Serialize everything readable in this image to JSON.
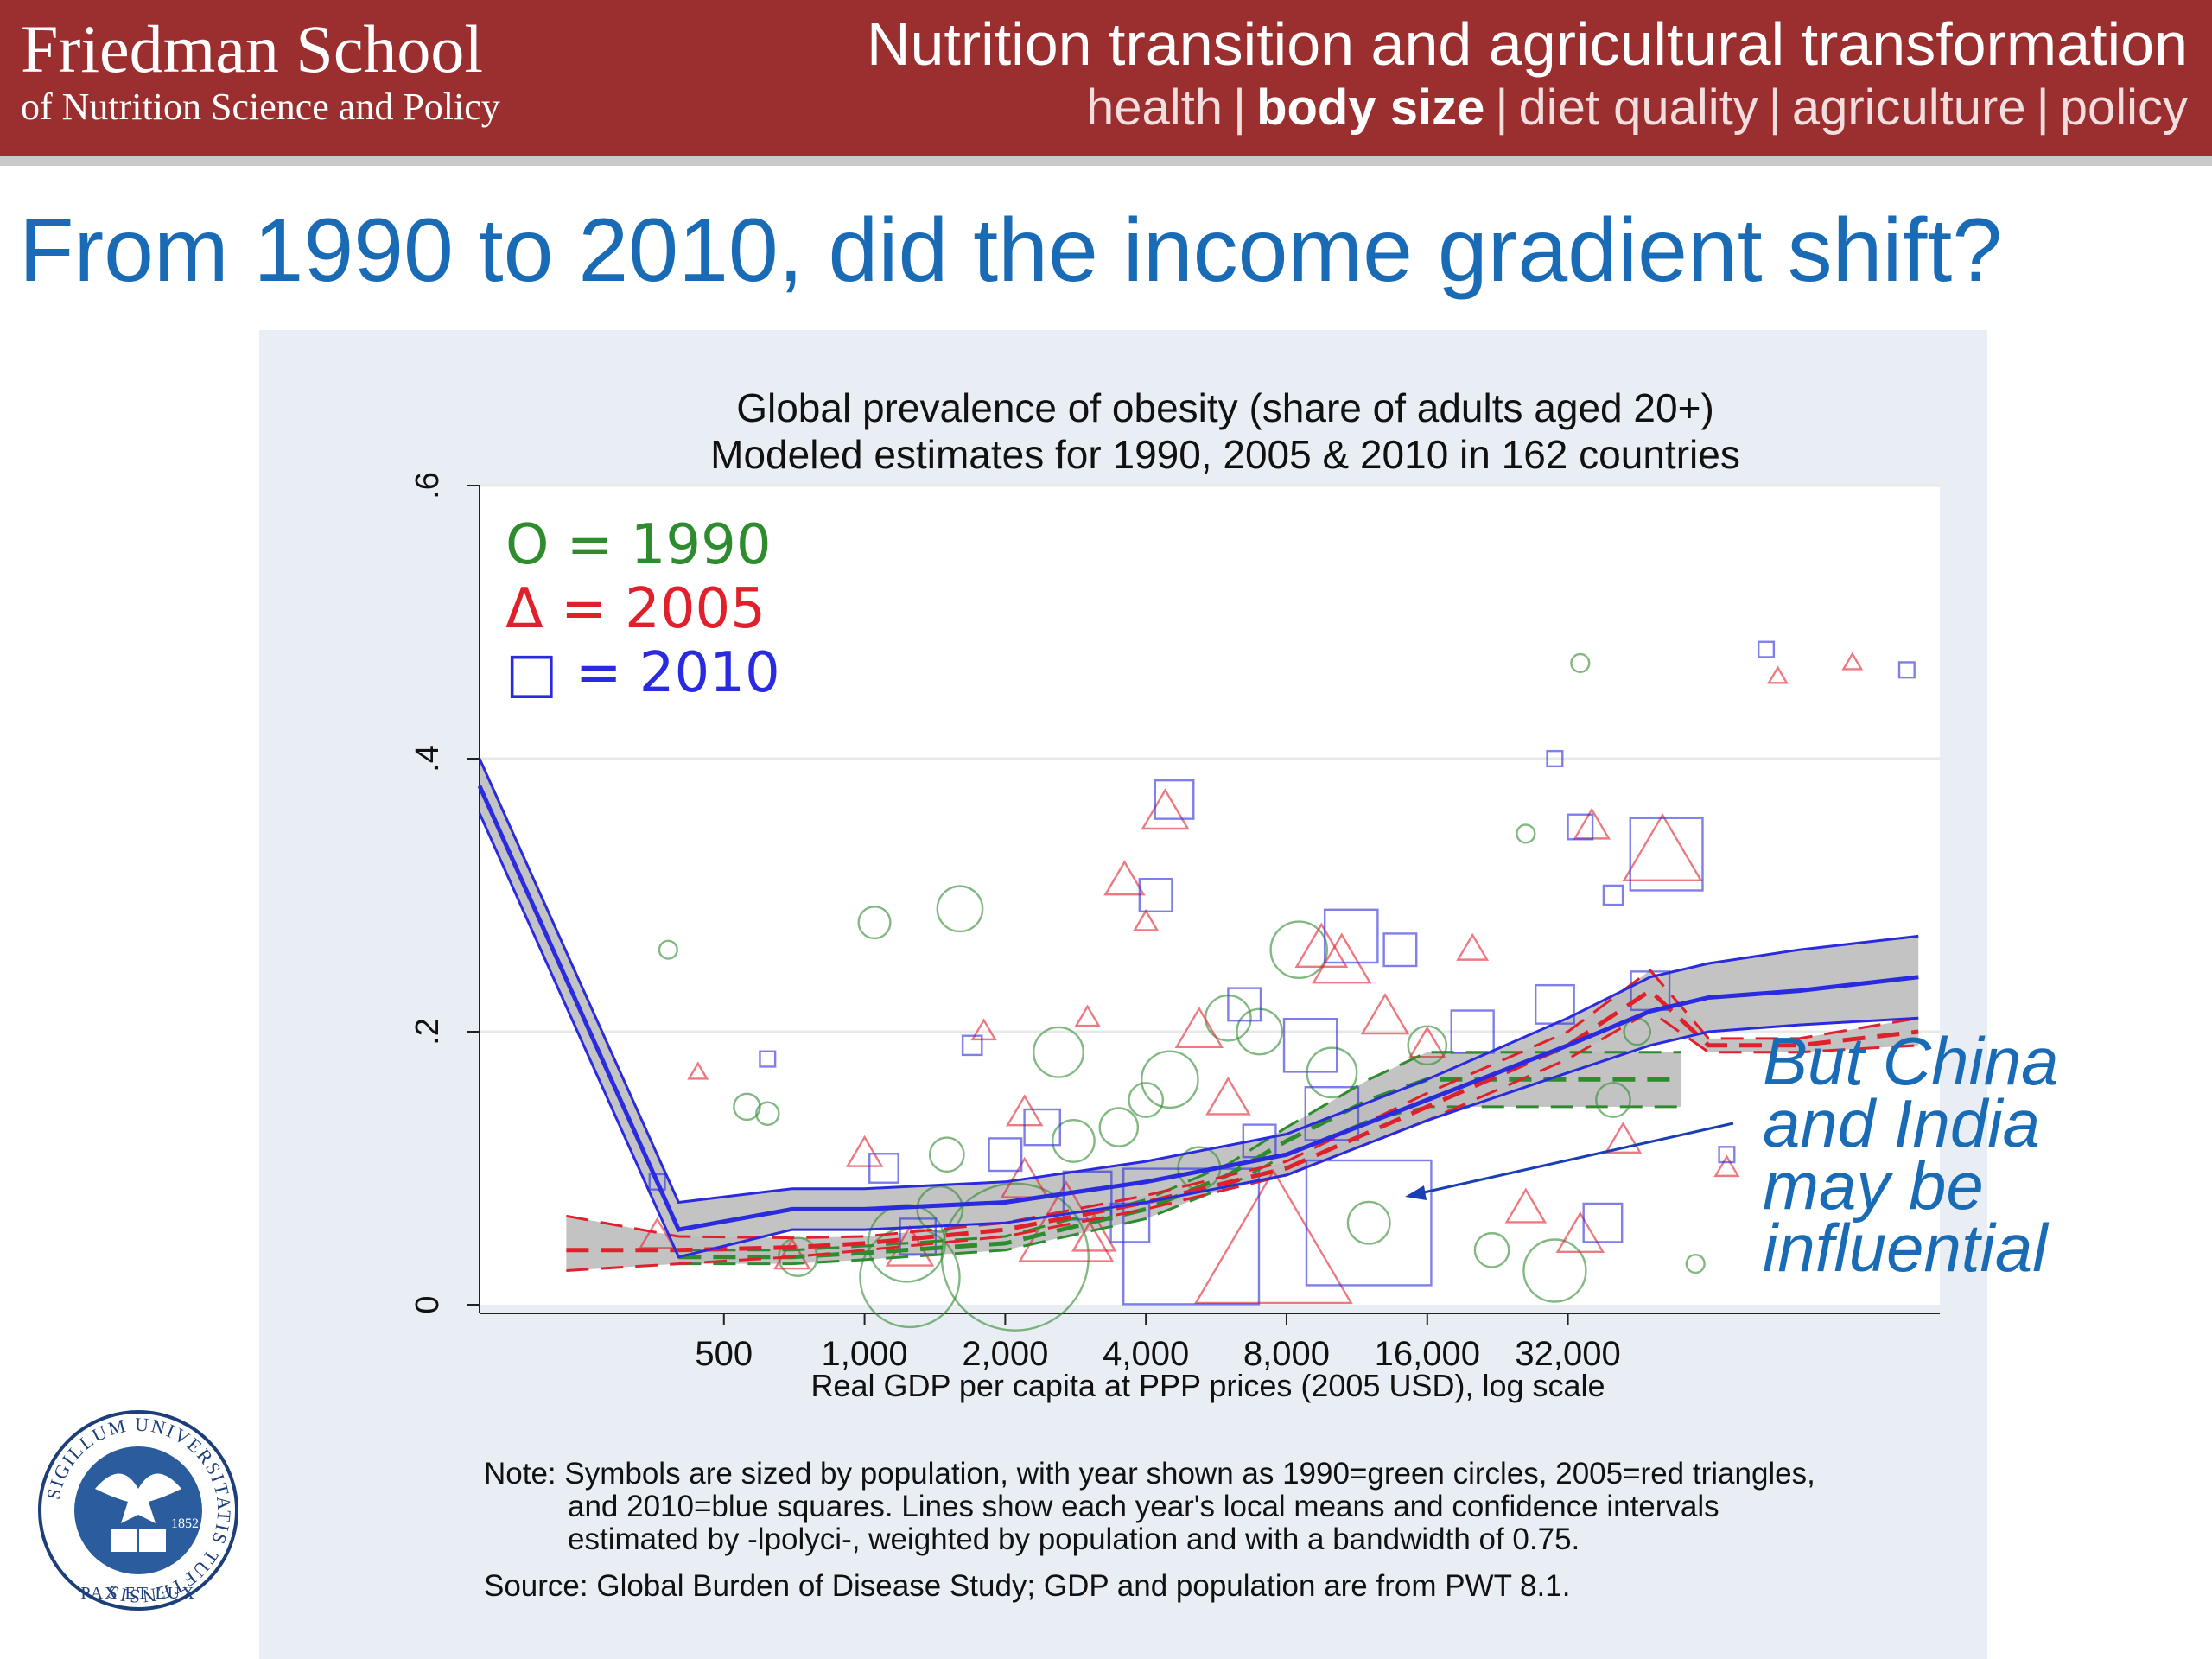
{
  "header": {
    "school_name": "Friedman School",
    "school_subtitle": "of Nutrition Science and Policy",
    "title": "Nutrition transition and agricultural transformation",
    "nav": [
      {
        "label": "health",
        "active": false
      },
      {
        "label": "body size",
        "active": true
      },
      {
        "label": "diet quality",
        "active": false
      },
      {
        "label": "agriculture",
        "active": false
      },
      {
        "label": "policy",
        "active": false
      }
    ]
  },
  "slide_title": "From 1990 to 2010, did the income gradient shift?",
  "callout": {
    "lines": [
      "But China",
      "and India",
      "may be",
      "influential"
    ]
  },
  "note": {
    "line1": "Note: Symbols are sized by population, with year shown as 1990=green circles, 2005=red triangles,",
    "line2": "and 2010=blue squares. Lines show each year's local means and confidence intervals",
    "line3": "estimated by -lpolyci-, weighted by population and with a bandwidth of 0.75.",
    "source": "Source: Global Burden of Disease Study; GDP and population are from PWT 8.1."
  },
  "seal": {
    "text": "SIGILLUM UNIVERSITATIS TUFTENSIS",
    "motto": "PAX ET LUX",
    "year": "1852"
  },
  "colors": {
    "header_bg": "#9b2f2f",
    "title_blue": "#1a6bb5",
    "green_1990": "#2e8b2e",
    "red_2005": "#e0212b",
    "blue_2010": "#2a2ae0",
    "ci_band": "#bdbdbd"
  },
  "chart_data": {
    "type": "scatter",
    "title": "Global prevalence of obesity (share of adults aged 20+)",
    "subtitle": "Modeled estimates for 1990, 2005 & 2010 in 162 countries",
    "xlabel": "Real GDP per capita at PPP prices (2005 USD), log scale",
    "ylabel": "",
    "x_scale": "log",
    "xlim": [
      150,
      200000
    ],
    "ylim": [
      0,
      0.6
    ],
    "x_ticks": [
      500,
      1000,
      2000,
      4000,
      8000,
      16000,
      32000
    ],
    "x_tick_labels": [
      "500",
      "1,000",
      "2,000",
      "4,000",
      "8,000",
      "16,000",
      "32,000"
    ],
    "y_ticks": [
      0,
      0.2,
      0.4,
      0.6
    ],
    "y_tick_labels": [
      "0",
      ".2",
      ".4",
      ".6"
    ],
    "grid": true,
    "legend": {
      "placement": "top-left",
      "entries": [
        {
          "symbol": "O",
          "label": "= 1990",
          "color": "#2e8b2e"
        },
        {
          "symbol": "Δ",
          "label": "= 2005",
          "color": "#e0212b"
        },
        {
          "symbol": "□",
          "label": "= 2010",
          "color": "#2a2ae0"
        }
      ]
    },
    "series": [
      {
        "name": "1990",
        "marker": "circle",
        "color": "#2e8b2e",
        "points": [
          {
            "x": 380,
            "y": 0.26,
            "pop": 1
          },
          {
            "x": 560,
            "y": 0.145,
            "pop": 3
          },
          {
            "x": 620,
            "y": 0.14,
            "pop": 2
          },
          {
            "x": 720,
            "y": 0.035,
            "pop": 8
          },
          {
            "x": 1050,
            "y": 0.28,
            "pop": 5
          },
          {
            "x": 1230,
            "y": 0.045,
            "pop": 40
          },
          {
            "x": 1250,
            "y": 0.02,
            "pop": 70
          },
          {
            "x": 1450,
            "y": 0.07,
            "pop": 12
          },
          {
            "x": 1600,
            "y": 0.29,
            "pop": 12
          },
          {
            "x": 2100,
            "y": 0.035,
            "pop": 160
          },
          {
            "x": 2600,
            "y": 0.185,
            "pop": 15
          },
          {
            "x": 2800,
            "y": 0.12,
            "pop": 10
          },
          {
            "x": 3500,
            "y": 0.13,
            "pop": 8
          },
          {
            "x": 4000,
            "y": 0.15,
            "pop": 6
          },
          {
            "x": 4500,
            "y": 0.165,
            "pop": 20
          },
          {
            "x": 5200,
            "y": 0.1,
            "pop": 10
          },
          {
            "x": 7000,
            "y": 0.2,
            "pop": 12
          },
          {
            "x": 8500,
            "y": 0.26,
            "pop": 20
          },
          {
            "x": 10000,
            "y": 0.17,
            "pop": 15
          },
          {
            "x": 12000,
            "y": 0.06,
            "pop": 10
          },
          {
            "x": 16000,
            "y": 0.19,
            "pop": 8
          },
          {
            "x": 22000,
            "y": 0.04,
            "pop": 6
          },
          {
            "x": 30000,
            "y": 0.025,
            "pop": 25
          },
          {
            "x": 34000,
            "y": 0.47,
            "pop": 1
          },
          {
            "x": 40000,
            "y": 0.15,
            "pop": 6
          },
          {
            "x": 45000,
            "y": 0.2,
            "pop": 3
          },
          {
            "x": 26000,
            "y": 0.345,
            "pop": 1
          },
          {
            "x": 60000,
            "y": 0.03,
            "pop": 1
          },
          {
            "x": 1500,
            "y": 0.11,
            "pop": 6
          },
          {
            "x": 6000,
            "y": 0.21,
            "pop": 12
          }
        ]
      },
      {
        "name": "2005",
        "marker": "triangle",
        "color": "#e0212b",
        "points": [
          {
            "x": 360,
            "y": 0.05,
            "pop": 6
          },
          {
            "x": 440,
            "y": 0.17,
            "pop": 1
          },
          {
            "x": 700,
            "y": 0.035,
            "pop": 6
          },
          {
            "x": 1000,
            "y": 0.11,
            "pop": 6
          },
          {
            "x": 1250,
            "y": 0.04,
            "pop": 12
          },
          {
            "x": 2200,
            "y": 0.14,
            "pop": 6
          },
          {
            "x": 2700,
            "y": 0.055,
            "pop": 60
          },
          {
            "x": 3100,
            "y": 0.05,
            "pop": 10
          },
          {
            "x": 4400,
            "y": 0.36,
            "pop": 12
          },
          {
            "x": 3600,
            "y": 0.31,
            "pop": 8
          },
          {
            "x": 5200,
            "y": 0.2,
            "pop": 12
          },
          {
            "x": 7500,
            "y": 0.04,
            "pop": 180
          },
          {
            "x": 9500,
            "y": 0.26,
            "pop": 15
          },
          {
            "x": 10500,
            "y": 0.25,
            "pop": 20
          },
          {
            "x": 13000,
            "y": 0.21,
            "pop": 12
          },
          {
            "x": 26000,
            "y": 0.07,
            "pop": 8
          },
          {
            "x": 34000,
            "y": 0.05,
            "pop": 12
          },
          {
            "x": 36000,
            "y": 0.35,
            "pop": 6
          },
          {
            "x": 51000,
            "y": 0.33,
            "pop": 40
          },
          {
            "x": 42000,
            "y": 0.12,
            "pop": 6
          },
          {
            "x": 90000,
            "y": 0.46,
            "pop": 1
          },
          {
            "x": 130000,
            "y": 0.47,
            "pop": 1
          },
          {
            "x": 2200,
            "y": 0.09,
            "pop": 12
          },
          {
            "x": 6000,
            "y": 0.15,
            "pop": 10
          },
          {
            "x": 1800,
            "y": 0.2,
            "pop": 2
          },
          {
            "x": 3000,
            "y": 0.21,
            "pop": 2
          },
          {
            "x": 4000,
            "y": 0.28,
            "pop": 2
          },
          {
            "x": 20000,
            "y": 0.26,
            "pop": 4
          },
          {
            "x": 70000,
            "y": 0.1,
            "pop": 2
          },
          {
            "x": 16000,
            "y": 0.19,
            "pop": 6
          }
        ]
      },
      {
        "name": "2010",
        "marker": "square",
        "color": "#2a2ae0",
        "points": [
          {
            "x": 360,
            "y": 0.09,
            "pop": 1
          },
          {
            "x": 620,
            "y": 0.18,
            "pop": 1
          },
          {
            "x": 1100,
            "y": 0.1,
            "pop": 6
          },
          {
            "x": 1300,
            "y": 0.05,
            "pop": 10
          },
          {
            "x": 1700,
            "y": 0.19,
            "pop": 2
          },
          {
            "x": 2400,
            "y": 0.13,
            "pop": 10
          },
          {
            "x": 3000,
            "y": 0.08,
            "pop": 20
          },
          {
            "x": 3700,
            "y": 0.06,
            "pop": 12
          },
          {
            "x": 4200,
            "y": 0.3,
            "pop": 8
          },
          {
            "x": 4600,
            "y": 0.37,
            "pop": 12
          },
          {
            "x": 5000,
            "y": 0.05,
            "pop": 190
          },
          {
            "x": 6500,
            "y": 0.22,
            "pop": 8
          },
          {
            "x": 9000,
            "y": 0.19,
            "pop": 25
          },
          {
            "x": 11000,
            "y": 0.27,
            "pop": 25
          },
          {
            "x": 12000,
            "y": 0.06,
            "pop": 160
          },
          {
            "x": 14000,
            "y": 0.26,
            "pop": 8
          },
          {
            "x": 20000,
            "y": 0.2,
            "pop": 15
          },
          {
            "x": 30000,
            "y": 0.22,
            "pop": 12
          },
          {
            "x": 34000,
            "y": 0.35,
            "pop": 4
          },
          {
            "x": 38000,
            "y": 0.06,
            "pop": 12
          },
          {
            "x": 40000,
            "y": 0.3,
            "pop": 2
          },
          {
            "x": 52000,
            "y": 0.33,
            "pop": 50
          },
          {
            "x": 48000,
            "y": 0.23,
            "pop": 12
          },
          {
            "x": 85000,
            "y": 0.48,
            "pop": 1
          },
          {
            "x": 170000,
            "y": 0.465,
            "pop": 1
          },
          {
            "x": 30000,
            "y": 0.4,
            "pop": 1
          },
          {
            "x": 10000,
            "y": 0.14,
            "pop": 25
          },
          {
            "x": 70000,
            "y": 0.11,
            "pop": 1
          },
          {
            "x": 2000,
            "y": 0.11,
            "pop": 8
          },
          {
            "x": 7000,
            "y": 0.12,
            "pop": 8
          }
        ]
      }
    ],
    "fits": [
      {
        "name": "1990",
        "color": "#2e8b2e",
        "style": "dashed",
        "x": [
          400,
          700,
          1000,
          2000,
          4000,
          6000,
          8000,
          12000,
          16000,
          24000,
          32000,
          45000,
          56000
        ],
        "y": [
          0.035,
          0.035,
          0.038,
          0.045,
          0.07,
          0.095,
          0.12,
          0.15,
          0.165,
          0.165,
          0.165,
          0.165,
          0.165
        ],
        "lo": [
          0.03,
          0.03,
          0.033,
          0.04,
          0.063,
          0.087,
          0.11,
          0.135,
          0.145,
          0.145,
          0.145,
          0.145,
          0.145
        ],
        "hi": [
          0.04,
          0.04,
          0.043,
          0.05,
          0.077,
          0.103,
          0.13,
          0.165,
          0.185,
          0.185,
          0.185,
          0.185,
          0.185
        ]
      },
      {
        "name": "2005",
        "color": "#e0212b",
        "style": "dashed",
        "x": [
          230,
          400,
          700,
          1000,
          2000,
          4000,
          8000,
          16000,
          32000,
          48000,
          64000,
          100000,
          180000
        ],
        "y": [
          0.04,
          0.04,
          0.042,
          0.045,
          0.055,
          0.075,
          0.1,
          0.145,
          0.19,
          0.23,
          0.19,
          0.19,
          0.2
        ],
        "lo": [
          0.025,
          0.03,
          0.035,
          0.04,
          0.05,
          0.07,
          0.095,
          0.135,
          0.18,
          0.215,
          0.185,
          0.185,
          0.19
        ],
        "hi": [
          0.065,
          0.05,
          0.049,
          0.05,
          0.06,
          0.08,
          0.105,
          0.155,
          0.2,
          0.245,
          0.195,
          0.195,
          0.21
        ]
      },
      {
        "name": "2010",
        "color": "#2a2ae0",
        "style": "solid",
        "x": [
          150,
          400,
          700,
          1000,
          2000,
          4000,
          8000,
          16000,
          32000,
          48000,
          64000,
          100000,
          180000
        ],
        "y": [
          0.38,
          0.055,
          0.07,
          0.07,
          0.075,
          0.09,
          0.11,
          0.15,
          0.19,
          0.215,
          0.225,
          0.23,
          0.24
        ],
        "lo": [
          0.36,
          0.035,
          0.055,
          0.055,
          0.06,
          0.075,
          0.095,
          0.135,
          0.17,
          0.19,
          0.2,
          0.205,
          0.21
        ],
        "hi": [
          0.4,
          0.075,
          0.085,
          0.085,
          0.09,
          0.105,
          0.125,
          0.165,
          0.21,
          0.24,
          0.25,
          0.26,
          0.27
        ]
      }
    ]
  }
}
